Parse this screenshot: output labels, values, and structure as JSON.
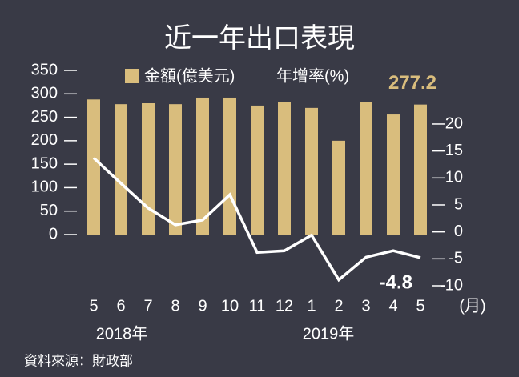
{
  "chart_data": {
    "type": "bar",
    "title": "近一年出口表現",
    "categories": [
      "5",
      "6",
      "7",
      "8",
      "9",
      "10",
      "11",
      "12",
      "1",
      "2",
      "3",
      "4",
      "5"
    ],
    "x_unit": "(月)",
    "year_labels": [
      "2018年",
      "2019年"
    ],
    "series": [
      {
        "name": "金額(億美元)",
        "color": "#d9bd7d",
        "type": "bar",
        "values": [
          288,
          278,
          280,
          278,
          292,
          292,
          275,
          282,
          270,
          200,
          283,
          256,
          277.2
        ],
        "value_labels": [
          null,
          null,
          null,
          null,
          null,
          null,
          null,
          null,
          null,
          null,
          null,
          null,
          "277.2"
        ]
      },
      {
        "name": "年增率(%)",
        "color": "#ffffff",
        "type": "line",
        "axis": "y2",
        "values": [
          13.7,
          9,
          4.4,
          1.3,
          2.2,
          6.9,
          -3.8,
          -3.5,
          -0.6,
          -8.9,
          -4.7,
          -3.5,
          -4.8
        ],
        "value_labels": [
          null,
          null,
          null,
          null,
          null,
          null,
          null,
          null,
          null,
          null,
          null,
          null,
          "-4.8"
        ]
      }
    ],
    "ylim": [
      0,
      350
    ],
    "yticks": [
      0,
      50,
      100,
      150,
      200,
      250,
      300,
      350
    ],
    "y2lim": [
      -10,
      25
    ],
    "y2ticks": [
      -10,
      -5,
      0,
      5,
      10,
      15,
      20
    ],
    "source": "資料來源：財政部"
  }
}
